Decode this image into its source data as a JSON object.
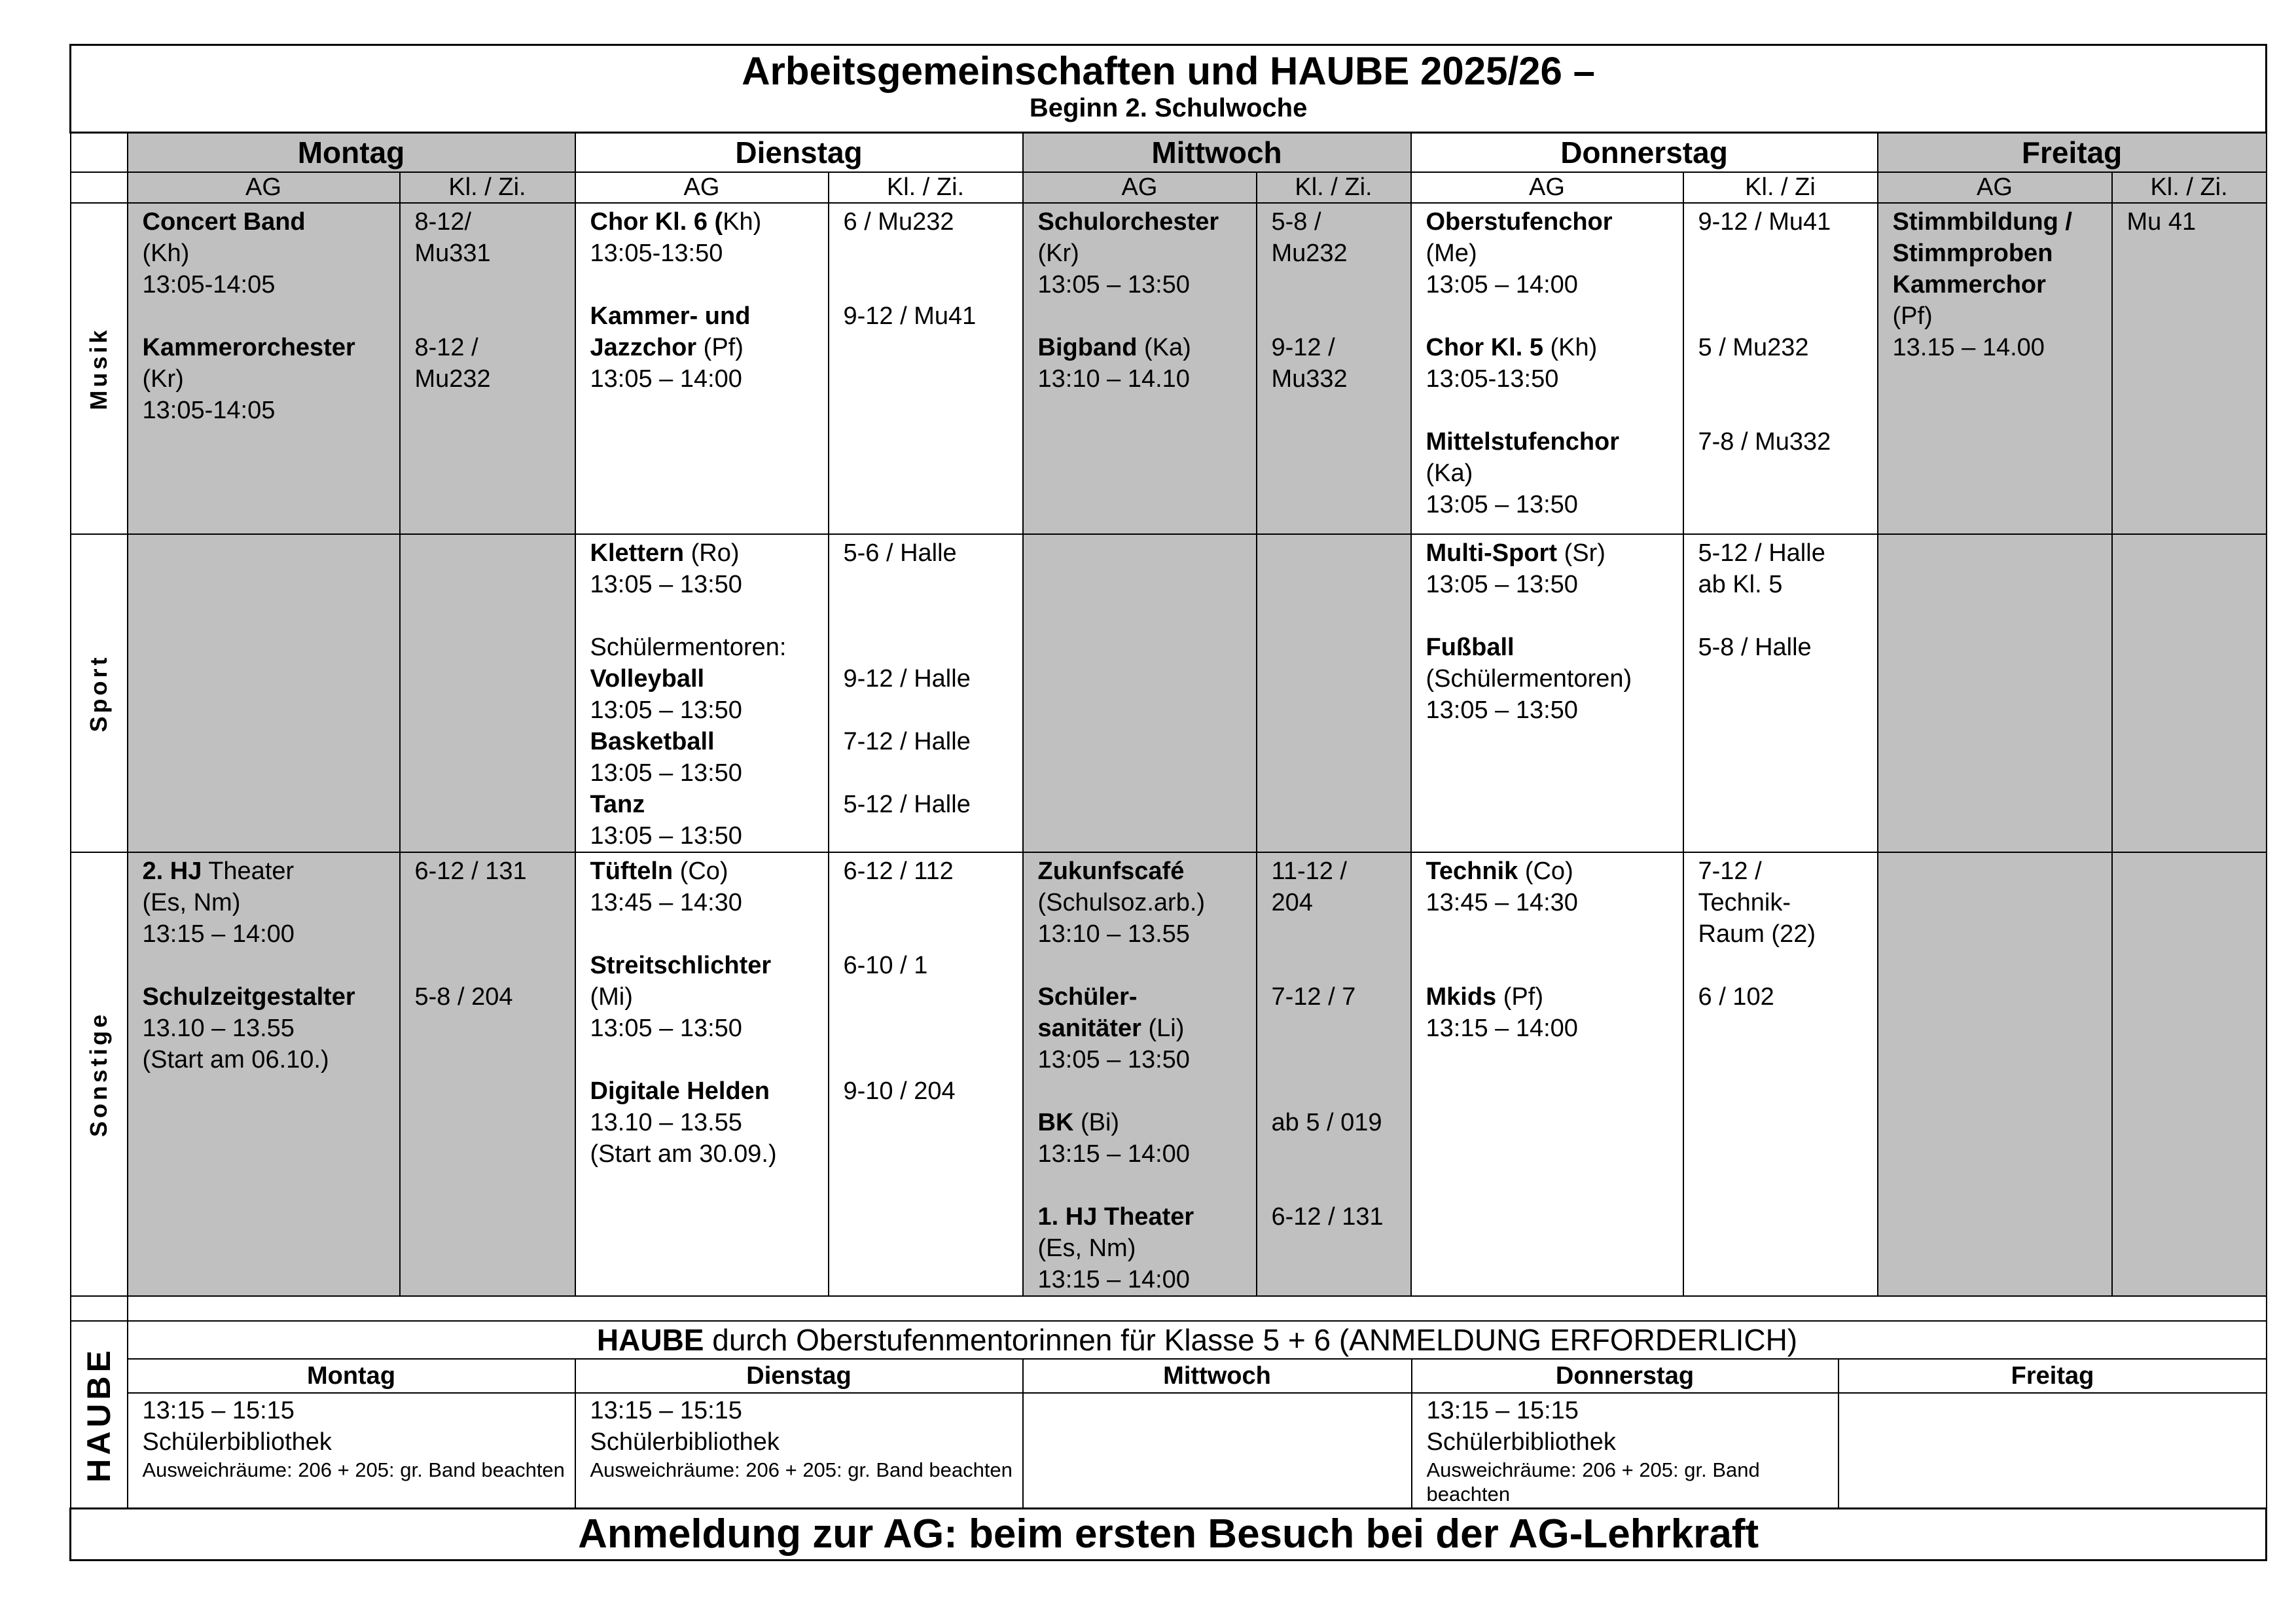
{
  "title": "Arbeitsgemeinschaften und HAUBE 2025/26 –",
  "subtitle": "Beginn 2. Schulwoche",
  "colors": {
    "shade": "#c0c0c0",
    "border": "#000000"
  },
  "days": [
    "Montag",
    "Dienstag",
    "Mittwoch",
    "Donnerstag",
    "Freitag"
  ],
  "subheaders": [
    "AG",
    "Kl. / Zi.",
    "AG",
    "Kl. / Zi.",
    "AG",
    "Kl. / Zi.",
    "AG",
    "Kl. / Zi",
    "AG",
    "Kl. / Zi."
  ],
  "sections": [
    {
      "label": "Musik",
      "cells": [
        {
          "lines": [
            [
              "Concert Band",
              ""
            ],
            [
              "",
              "(Kh)"
            ],
            [
              "",
              "13:05-14:05"
            ],
            [],
            [
              "Kammerorchester",
              ""
            ],
            [
              "",
              "(Kr)"
            ],
            [
              "",
              "13:05-14:05"
            ]
          ]
        },
        {
          "lines": [
            [
              "",
              "8-12/"
            ],
            [
              "",
              "Mu331"
            ],
            [],
            [],
            [
              "",
              "8-12 /"
            ],
            [
              "",
              "Mu232"
            ]
          ]
        },
        {
          "lines": [
            [
              "Chor Kl. 6 (",
              "Kh)"
            ],
            [
              "",
              "13:05-13:50"
            ],
            [],
            [
              "Kammer- und",
              ""
            ],
            [
              "Jazzchor",
              " (Pf)"
            ],
            [
              "",
              "13:05 – 14:00"
            ]
          ]
        },
        {
          "lines": [
            [
              "",
              "6 / Mu232"
            ],
            [],
            [],
            [
              "",
              "9-12 / Mu41"
            ]
          ]
        },
        {
          "lines": [
            [
              "Schulorchester",
              ""
            ],
            [
              "",
              "(Kr)"
            ],
            [
              "",
              "13:05 – 13:50"
            ],
            [],
            [
              "Bigband",
              " (Ka)"
            ],
            [
              "",
              "13:10 – 14.10"
            ]
          ]
        },
        {
          "lines": [
            [
              "",
              "5-8 /"
            ],
            [
              "",
              "Mu232"
            ],
            [],
            [],
            [
              "",
              "9-12 /"
            ],
            [
              "",
              "Mu332"
            ]
          ]
        },
        {
          "lines": [
            [
              "Oberstufenchor",
              ""
            ],
            [
              "",
              "(Me)"
            ],
            [
              "",
              "13:05 – 14:00"
            ],
            [],
            [
              "Chor Kl. 5",
              " (Kh)"
            ],
            [
              "",
              "13:05-13:50"
            ],
            [],
            [
              "Mittelstufenchor",
              ""
            ],
            [
              "",
              "(Ka)"
            ],
            [
              "",
              "13:05 – 13:50"
            ]
          ]
        },
        {
          "lines": [
            [
              "",
              "9-12 / Mu41"
            ],
            [],
            [],
            [],
            [
              "",
              "5 / Mu232"
            ],
            [],
            [],
            [
              "",
              "7-8 / Mu332"
            ]
          ]
        },
        {
          "lines": [
            [
              "Stimmbildung /",
              ""
            ],
            [
              "Stimmproben",
              ""
            ],
            [
              "Kammerchor",
              ""
            ],
            [
              "",
              "(Pf)"
            ],
            [
              "",
              "13.15 – 14.00"
            ]
          ]
        },
        {
          "lines": [
            [
              "",
              "Mu 41"
            ]
          ]
        }
      ]
    },
    {
      "label": "Sport",
      "cells": [
        {
          "lines": []
        },
        {
          "lines": []
        },
        {
          "lines": [
            [
              "Klettern",
              " (Ro)"
            ],
            [
              "",
              "13:05 – 13:50"
            ],
            [],
            [
              "",
              "Schülermentoren:"
            ],
            [
              "Volleyball",
              ""
            ],
            [
              "",
              "13:05 – 13:50"
            ],
            [
              "Basketball",
              ""
            ],
            [
              "",
              "13:05 – 13:50"
            ],
            [
              "Tanz",
              ""
            ],
            [
              "",
              "13:05 – 13:50"
            ]
          ]
        },
        {
          "lines": [
            [
              "",
              "5-6 / Halle"
            ],
            [],
            [],
            [],
            [
              "",
              "9-12 / Halle"
            ],
            [],
            [
              "",
              "7-12 / Halle"
            ],
            [],
            [
              "",
              "5-12 / Halle"
            ]
          ]
        },
        {
          "lines": []
        },
        {
          "lines": []
        },
        {
          "lines": [
            [
              "Multi-Sport",
              " (Sr)"
            ],
            [
              "",
              "13:05 – 13:50"
            ],
            [],
            [
              "Fußball",
              ""
            ],
            [
              "",
              "(Schülermentoren)"
            ],
            [
              "",
              "13:05 – 13:50"
            ]
          ]
        },
        {
          "lines": [
            [
              "",
              "5-12 / Halle"
            ],
            [
              "",
              "ab Kl. 5"
            ],
            [],
            [
              "",
              "5-8 / Halle"
            ]
          ]
        },
        {
          "lines": []
        },
        {
          "lines": []
        }
      ]
    },
    {
      "label": "Sonstige",
      "cells": [
        {
          "lines": [
            [
              "2. HJ",
              " Theater"
            ],
            [
              "",
              "(Es, Nm)"
            ],
            [
              "",
              "13:15 – 14:00"
            ],
            [],
            [
              "Schulzeitgestalter",
              ""
            ],
            [
              "",
              "13.10 – 13.55"
            ],
            [
              "",
              "(Start am 06.10.)"
            ]
          ]
        },
        {
          "lines": [
            [
              "",
              "6-12 / 131"
            ],
            [],
            [],
            [],
            [
              "",
              "5-8 / 204"
            ]
          ]
        },
        {
          "lines": [
            [
              "Tüfteln",
              " (Co)"
            ],
            [
              "",
              "13:45 – 14:30"
            ],
            [],
            [
              "Streitschlichter",
              ""
            ],
            [
              "",
              "(Mi)"
            ],
            [
              "",
              "13:05 – 13:50"
            ],
            [],
            [
              "Digitale Helden",
              ""
            ],
            [
              "",
              "13.10 – 13.55"
            ],
            [
              "",
              "(Start am 30.09.)"
            ]
          ]
        },
        {
          "lines": [
            [
              "",
              "6-12 / 112"
            ],
            [],
            [],
            [
              "",
              "6-10 / 1"
            ],
            [],
            [],
            [],
            [
              "",
              "9-10 / 204"
            ]
          ]
        },
        {
          "lines": [
            [
              "Zukunfscafé",
              ""
            ],
            [
              "",
              "(Schulsoz.arb.)"
            ],
            [
              "",
              "13:10 – 13.55"
            ],
            [],
            [
              "Schüler-",
              ""
            ],
            [
              "sanitäter",
              " (Li)"
            ],
            [
              "",
              "13:05 – 13:50"
            ],
            [],
            [
              "BK",
              " (Bi)"
            ],
            [
              "",
              "13:15 – 14:00"
            ],
            [],
            [
              "1. HJ Theater",
              ""
            ],
            [
              "",
              "(Es, Nm)"
            ],
            [
              "",
              "13:15 – 14:00"
            ]
          ]
        },
        {
          "lines": [
            [
              "",
              "11-12 /"
            ],
            [
              "",
              "204"
            ],
            [],
            [],
            [
              "",
              "7-12 / 7"
            ],
            [],
            [],
            [],
            [
              "",
              "ab 5 / 019"
            ],
            [],
            [],
            [
              "",
              "6-12 / 131"
            ]
          ]
        },
        {
          "lines": [
            [
              "Technik",
              " (Co)"
            ],
            [
              "",
              "13:45 – 14:30"
            ],
            [],
            [],
            [
              "Mkids",
              " (Pf)"
            ],
            [
              "",
              "13:15 – 14:00"
            ]
          ]
        },
        {
          "lines": [
            [
              "",
              "7-12 /"
            ],
            [
              "",
              "Technik-"
            ],
            [
              "",
              "Raum (22)"
            ],
            [],
            [
              "",
              "6 / 102"
            ]
          ]
        },
        {
          "lines": []
        },
        {
          "lines": []
        }
      ]
    }
  ],
  "haube": {
    "label": "HAUBE",
    "heading_bold": "HAUBE",
    "heading_rest": " durch Oberstufenmentorinnen für Klasse 5 + 6 (ANMELDUNG ERFORDERLICH)",
    "days": [
      "Montag",
      "Dienstag",
      "Mittwoch",
      "Donnerstag",
      "Freitag"
    ],
    "entries": [
      {
        "time": "13:15 – 15:15",
        "place": "Schülerbibliothek",
        "note": "Ausweichräume: 206 + 205: gr. Band beachten"
      },
      {
        "time": "13:15 – 15:15",
        "place": "Schülerbibliothek",
        "note": "Ausweichräume: 206 + 205: gr. Band beachten"
      },
      {
        "time": "",
        "place": "",
        "note": ""
      },
      {
        "time": "13:15 – 15:15",
        "place": "Schülerbibliothek",
        "note": "Ausweichräume: 206 + 205: gr. Band beachten"
      },
      {
        "time": "",
        "place": "",
        "note": ""
      }
    ]
  },
  "footer": "Anmeldung zur AG: beim ersten Besuch bei der AG-Lehrkraft"
}
